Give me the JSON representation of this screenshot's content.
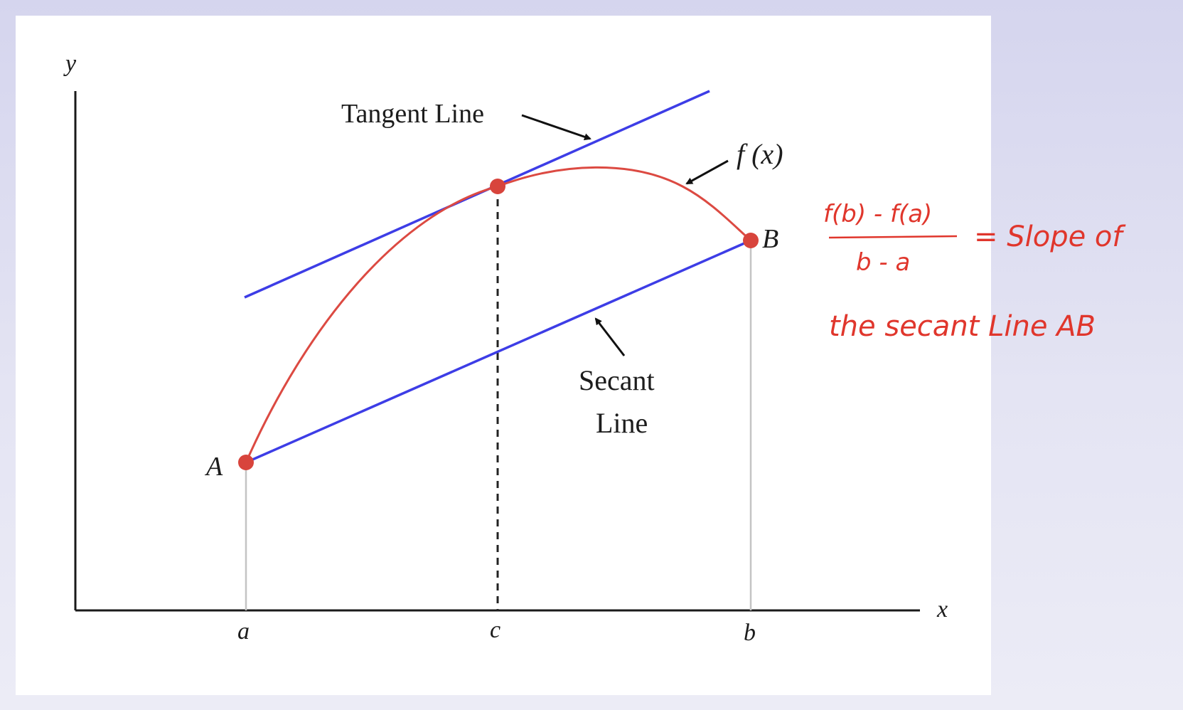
{
  "diagram": {
    "axes": {
      "y_label": "y",
      "x_label": "x"
    },
    "ticks": {
      "a": "a",
      "c": "c",
      "b": "b"
    },
    "points": {
      "A": "A",
      "B": "B"
    },
    "function_label": "f (x)",
    "tangent_label": "Tangent Line",
    "secant_label_line1": "Secant",
    "secant_label_line2": "Line",
    "colors": {
      "curve": "#dc4a42",
      "lines": "#3d3de6",
      "points": "#d8443c",
      "handwriting": "#e0362c"
    }
  },
  "annotation": {
    "numerator": "f(b) - f(a)",
    "denominator": "b - a",
    "equals_text": "= Slope of",
    "line2": "the secant Line AB"
  }
}
